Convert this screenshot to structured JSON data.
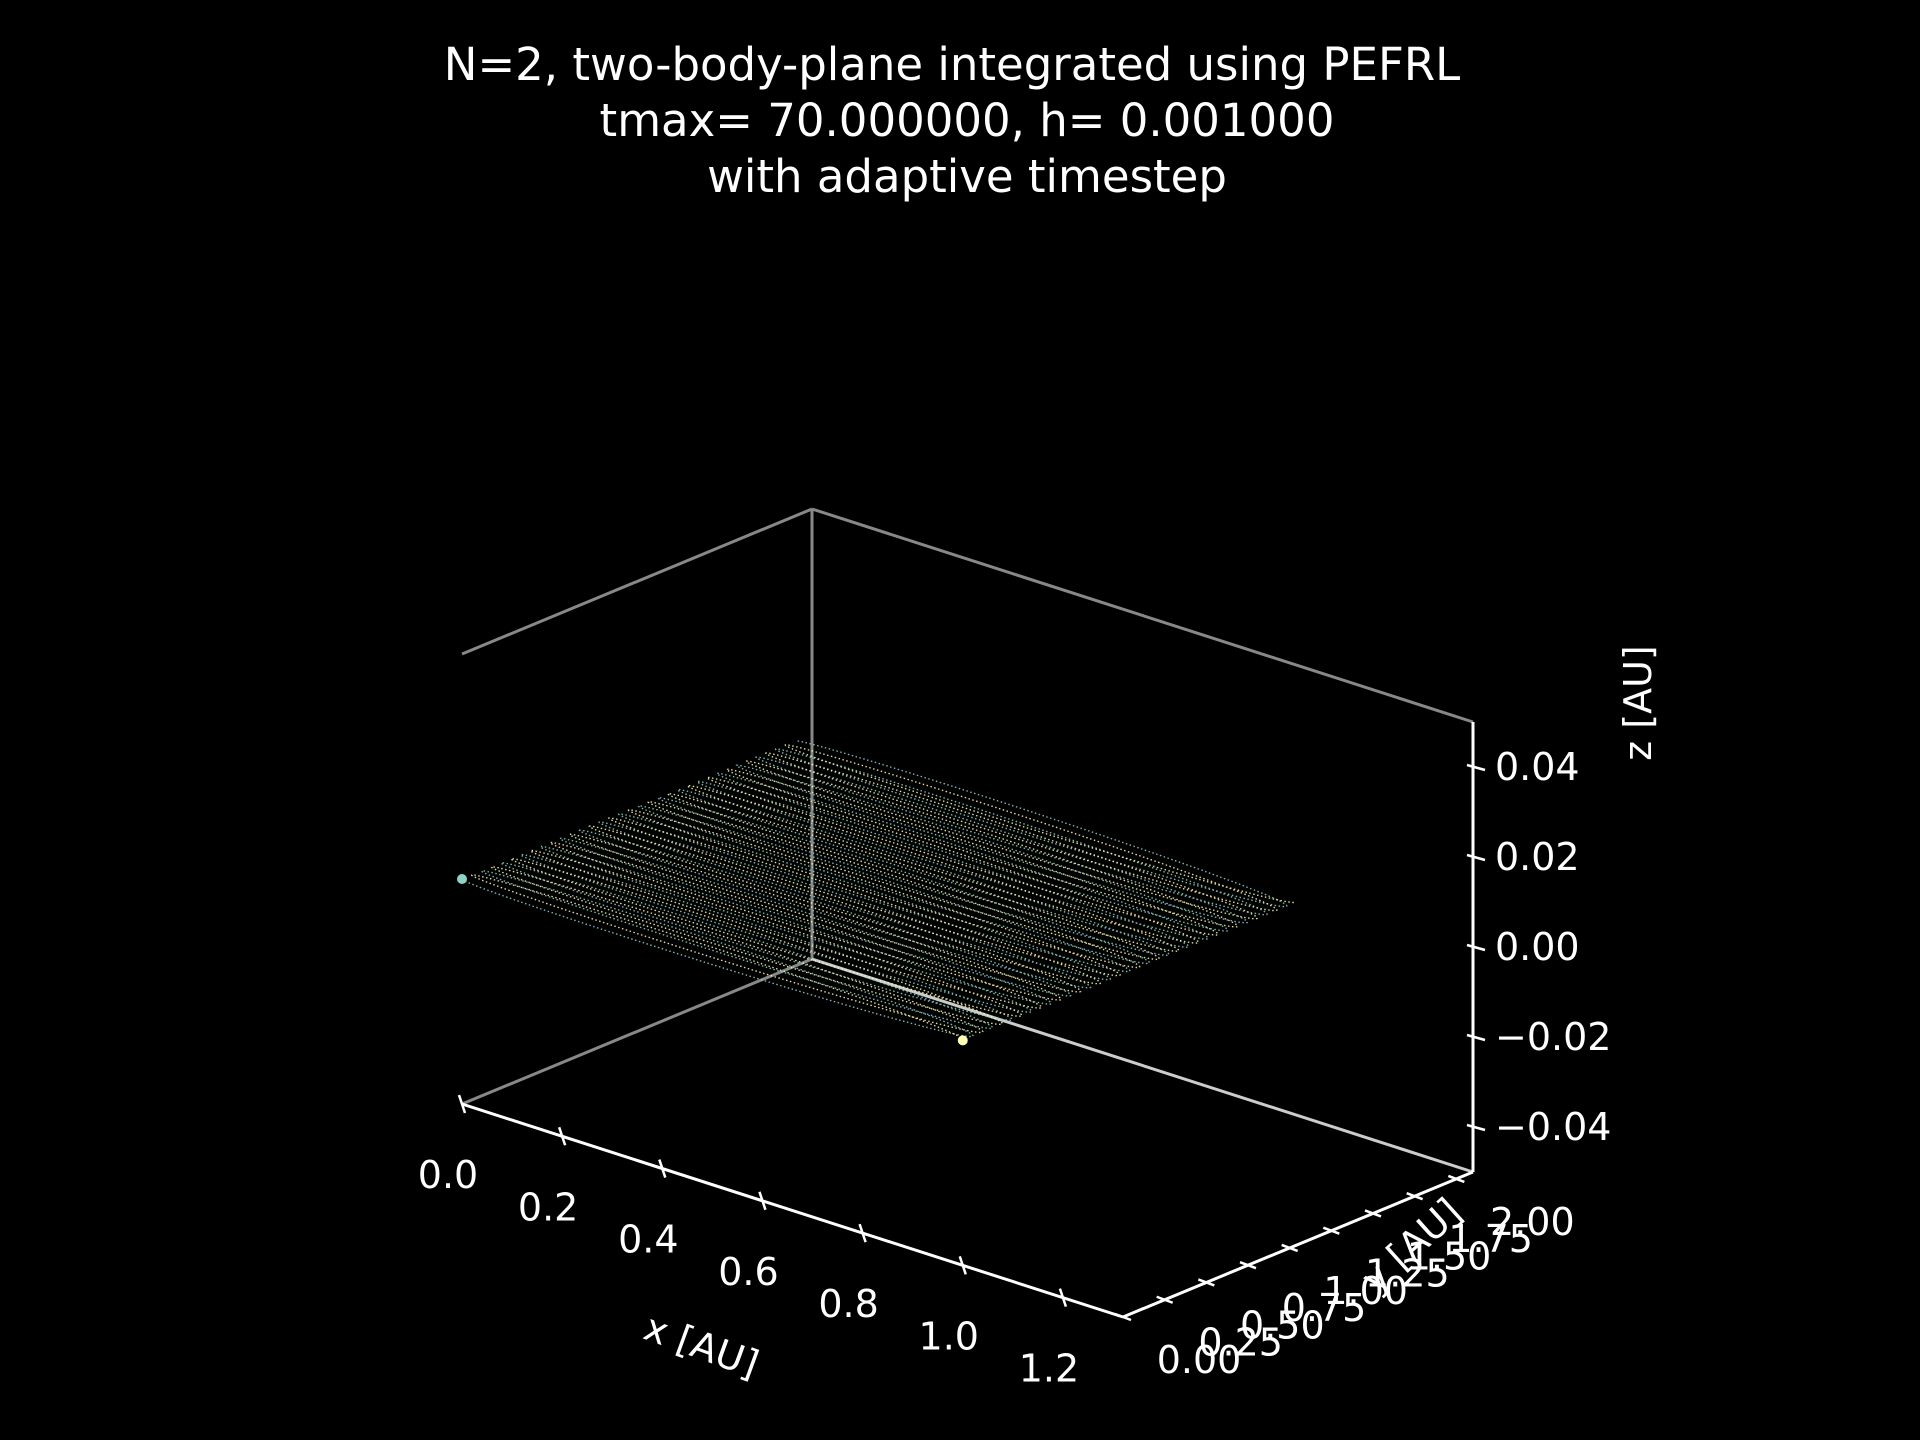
{
  "chart_data": {
    "type": "line",
    "projection": "3d",
    "title_lines": [
      "N=2, two-body-plane integrated using PEFRL",
      "tmax= 70.000000, h= 0.001000",
      "with adaptive timestep"
    ],
    "xlabel": "x [AU]",
    "ylabel": "y [AU]",
    "zlabel": "z [AU]",
    "x_ticks": [
      "0.0",
      "0.2",
      "0.4",
      "0.6",
      "0.8",
      "1.0",
      "1.2"
    ],
    "y_ticks": [
      "0.00",
      "0.25",
      "0.50",
      "0.75",
      "1.00",
      "1.25",
      "1.50",
      "1.75",
      "2.00"
    ],
    "z_ticks": [
      "−0.04",
      "−0.02",
      "0.00",
      "0.02",
      "0.04"
    ],
    "xlim": [
      0.0,
      1.32
    ],
    "ylim": [
      0.0,
      2.1
    ],
    "zlim": [
      -0.05,
      0.05
    ],
    "series": [
      {
        "color": "#8dd3c7",
        "start": {
          "x": 0.0,
          "y": 0.0,
          "z": 0.0
        },
        "drift": {
          "x": 0.0,
          "y": 2.0,
          "z": 0.0
        },
        "ellipse": {
          "semi_x": 1.0,
          "semi_y": 0.07
        },
        "loops": 17
      },
      {
        "color": "#ffffb3",
        "start": {
          "x": 1.0,
          "y": 0.0,
          "z": 0.0
        },
        "drift": {
          "x": 0.0,
          "y": 2.0,
          "z": 0.0
        },
        "ellipse": {
          "semi_x": 1.0,
          "semi_y": 0.07
        },
        "loops": 17
      }
    ],
    "background": "#000000",
    "pane_edge_color": "#888888",
    "axis_color": "#ffffff",
    "grid": false
  }
}
